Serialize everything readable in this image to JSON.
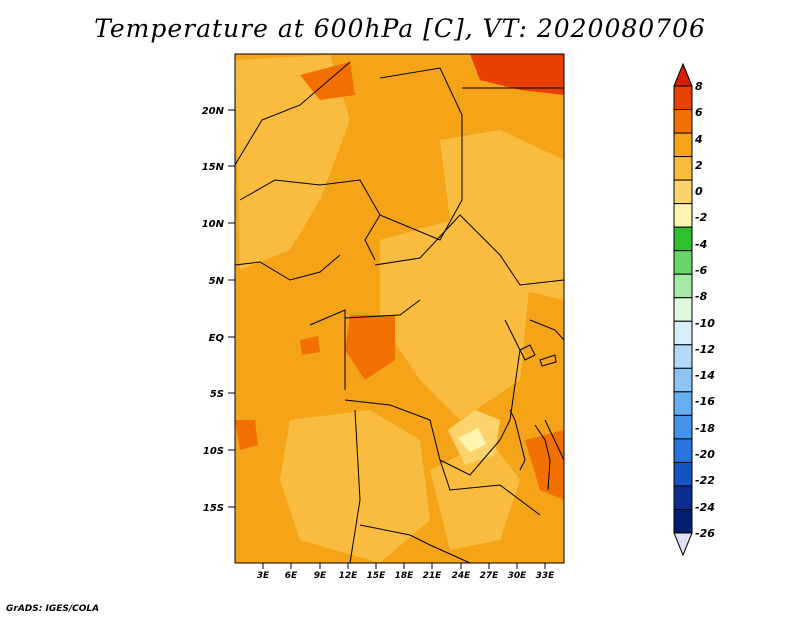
{
  "title": "Temperature at 600hPa [C], VT: 2020080706",
  "footer": "GrADS: IGES/COLA",
  "map": {
    "lon_range": [
      0,
      35
    ],
    "lat_range": [
      -20,
      24.5
    ],
    "lat_ticks": [
      "20N",
      "15N",
      "10N",
      "5N",
      "EQ",
      "5S",
      "10S",
      "15S"
    ],
    "lon_ticks": [
      "3E",
      "6E",
      "9E",
      "12E",
      "15E",
      "18E",
      "21E",
      "24E",
      "27E",
      "30E",
      "33E"
    ],
    "base_color": "#f5a418"
  },
  "colorbar": {
    "labels": [
      "8",
      "6",
      "4",
      "2",
      "0",
      "-2",
      "-4",
      "-6",
      "-8",
      "-10",
      "-12",
      "-14",
      "-16",
      "-18",
      "-20",
      "-22",
      "-24",
      "-26"
    ],
    "colors": [
      "#e84000",
      "#f27000",
      "#f5a418",
      "#fabc3e",
      "#fcd36c",
      "#fdf4b0",
      "#2fbf2f",
      "#6ad66a",
      "#a6eaa6",
      "#e0f8e0",
      "#d8ecfa",
      "#b2d9f7",
      "#8cc4f3",
      "#66aef0",
      "#4493e8",
      "#2a75dd",
      "#1553c2",
      "#0a2f8f",
      "#001e6e"
    ],
    "top_cap_color": "#d42000",
    "bottom_cap_color": "#e0e0f8"
  }
}
